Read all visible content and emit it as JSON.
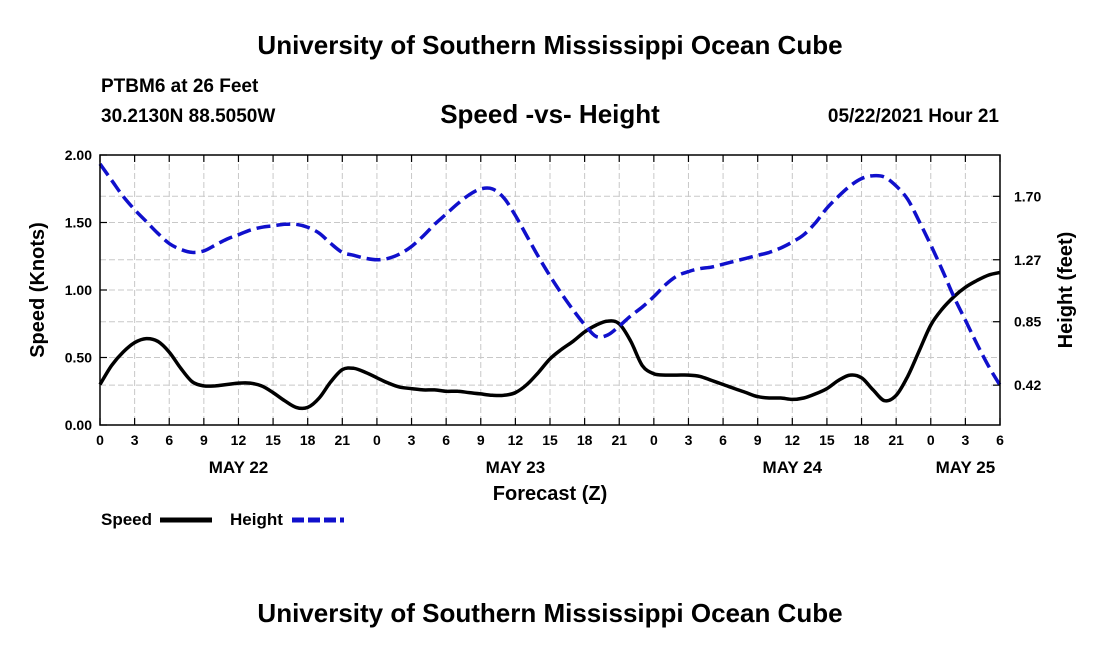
{
  "header": {
    "title": "University of Southern Mississippi Ocean Cube",
    "station": "PTBM6 at 26 Feet",
    "coords": "30.2130N  88.5050W",
    "subtitle": "Speed -vs- Height",
    "datetime": "05/22/2021 Hour 21"
  },
  "footer": {
    "title": "University of Southern Mississippi Ocean Cube"
  },
  "colors": {
    "speed": "#000000",
    "height": "#1010cc",
    "grid": "#c8c8c8"
  },
  "chart_data": {
    "type": "line",
    "title": "Speed -vs- Height",
    "xlabel": "Forecast (Z)",
    "ylabel": "Speed (Knots)",
    "y2label": "Height (feet)",
    "x_range_hours": [
      0,
      78
    ],
    "x_start": "05/22/2021 00Z",
    "x_ticks": [
      {
        "h": 0,
        "label": "0"
      },
      {
        "h": 3,
        "label": "3"
      },
      {
        "h": 6,
        "label": "6"
      },
      {
        "h": 9,
        "label": "9"
      },
      {
        "h": 12,
        "label": "12"
      },
      {
        "h": 15,
        "label": "15"
      },
      {
        "h": 18,
        "label": "18"
      },
      {
        "h": 21,
        "label": "21"
      },
      {
        "h": 24,
        "label": "0"
      },
      {
        "h": 27,
        "label": "3"
      },
      {
        "h": 30,
        "label": "6"
      },
      {
        "h": 33,
        "label": "9"
      },
      {
        "h": 36,
        "label": "12"
      },
      {
        "h": 39,
        "label": "15"
      },
      {
        "h": 42,
        "label": "18"
      },
      {
        "h": 45,
        "label": "21"
      },
      {
        "h": 48,
        "label": "0"
      },
      {
        "h": 51,
        "label": "3"
      },
      {
        "h": 54,
        "label": "6"
      },
      {
        "h": 57,
        "label": "9"
      },
      {
        "h": 60,
        "label": "12"
      },
      {
        "h": 63,
        "label": "15"
      },
      {
        "h": 66,
        "label": "18"
      },
      {
        "h": 69,
        "label": "21"
      },
      {
        "h": 72,
        "label": "0"
      },
      {
        "h": 75,
        "label": "3"
      },
      {
        "h": 78,
        "label": "6"
      }
    ],
    "date_labels": [
      {
        "h": 12,
        "label": "MAY 22"
      },
      {
        "h": 36,
        "label": "MAY 23"
      },
      {
        "h": 60,
        "label": "MAY 24"
      },
      {
        "h": 75,
        "label": "MAY 25"
      }
    ],
    "ylim": [
      0,
      2.0
    ],
    "yticks": [
      "0.00",
      "0.50",
      "1.00",
      "1.50",
      "2.00"
    ],
    "y2lim": [
      0.15,
      1.98
    ],
    "y2ticks": [
      "0.42",
      "0.85",
      "1.27",
      "1.70"
    ],
    "legend": {
      "position": "bottom-left",
      "entries": [
        "Speed",
        "Height"
      ]
    },
    "series": [
      {
        "name": "Speed",
        "axis": "left",
        "style": "solid",
        "x": [
          0,
          1,
          2,
          3,
          4,
          5,
          6,
          7,
          8,
          9,
          10,
          11,
          12,
          13,
          14,
          15,
          16,
          17,
          18,
          19,
          20,
          21,
          22,
          23,
          24,
          25,
          26,
          27,
          28,
          29,
          30,
          31,
          32,
          33,
          34,
          35,
          36,
          37,
          38,
          39,
          40,
          41,
          42,
          43,
          44,
          45,
          46,
          47,
          48,
          49,
          50,
          51,
          52,
          53,
          54,
          55,
          56,
          57,
          58,
          59,
          60,
          61,
          62,
          63,
          64,
          65,
          66,
          67,
          68,
          69,
          70,
          71,
          72,
          73,
          74,
          75,
          76,
          77,
          78
        ],
        "values": [
          0.3,
          0.44,
          0.54,
          0.61,
          0.64,
          0.62,
          0.54,
          0.42,
          0.32,
          0.29,
          0.29,
          0.3,
          0.31,
          0.31,
          0.29,
          0.24,
          0.18,
          0.13,
          0.13,
          0.2,
          0.32,
          0.41,
          0.42,
          0.39,
          0.35,
          0.31,
          0.28,
          0.27,
          0.26,
          0.26,
          0.25,
          0.25,
          0.24,
          0.23,
          0.22,
          0.22,
          0.24,
          0.3,
          0.39,
          0.49,
          0.56,
          0.62,
          0.69,
          0.74,
          0.77,
          0.75,
          0.62,
          0.44,
          0.38,
          0.37,
          0.37,
          0.37,
          0.36,
          0.33,
          0.3,
          0.27,
          0.24,
          0.21,
          0.2,
          0.2,
          0.19,
          0.2,
          0.23,
          0.27,
          0.33,
          0.37,
          0.35,
          0.26,
          0.18,
          0.22,
          0.36,
          0.55,
          0.74,
          0.86,
          0.95,
          1.02,
          1.07,
          1.11,
          1.13
        ]
      },
      {
        "name": "Height",
        "axis": "right",
        "style": "dashed",
        "x": [
          0,
          1,
          2,
          3,
          4,
          5,
          6,
          7,
          8,
          9,
          10,
          11,
          12,
          13,
          14,
          15,
          16,
          17,
          18,
          19,
          20,
          21,
          22,
          23,
          24,
          25,
          26,
          27,
          28,
          29,
          30,
          31,
          32,
          33,
          34,
          35,
          36,
          37,
          38,
          39,
          40,
          41,
          42,
          43,
          44,
          45,
          46,
          47,
          48,
          49,
          50,
          51,
          52,
          53,
          54,
          55,
          56,
          57,
          58,
          59,
          60,
          61,
          62,
          63,
          64,
          65,
          66,
          67,
          68,
          69,
          70,
          71,
          72,
          73,
          74,
          75,
          76,
          77,
          78
        ],
        "values": [
          1.92,
          1.81,
          1.7,
          1.61,
          1.53,
          1.45,
          1.38,
          1.34,
          1.32,
          1.33,
          1.37,
          1.41,
          1.44,
          1.47,
          1.49,
          1.5,
          1.51,
          1.51,
          1.49,
          1.45,
          1.38,
          1.32,
          1.3,
          1.28,
          1.27,
          1.28,
          1.31,
          1.36,
          1.43,
          1.51,
          1.58,
          1.65,
          1.71,
          1.75,
          1.75,
          1.69,
          1.57,
          1.43,
          1.29,
          1.16,
          1.04,
          0.93,
          0.83,
          0.75,
          0.76,
          0.82,
          0.89,
          0.95,
          1.02,
          1.1,
          1.16,
          1.19,
          1.21,
          1.22,
          1.24,
          1.26,
          1.28,
          1.3,
          1.32,
          1.35,
          1.39,
          1.44,
          1.52,
          1.62,
          1.7,
          1.77,
          1.82,
          1.84,
          1.83,
          1.77,
          1.68,
          1.53,
          1.37,
          1.2,
          1.02,
          0.86,
          0.7,
          0.55,
          0.42
        ]
      }
    ]
  }
}
